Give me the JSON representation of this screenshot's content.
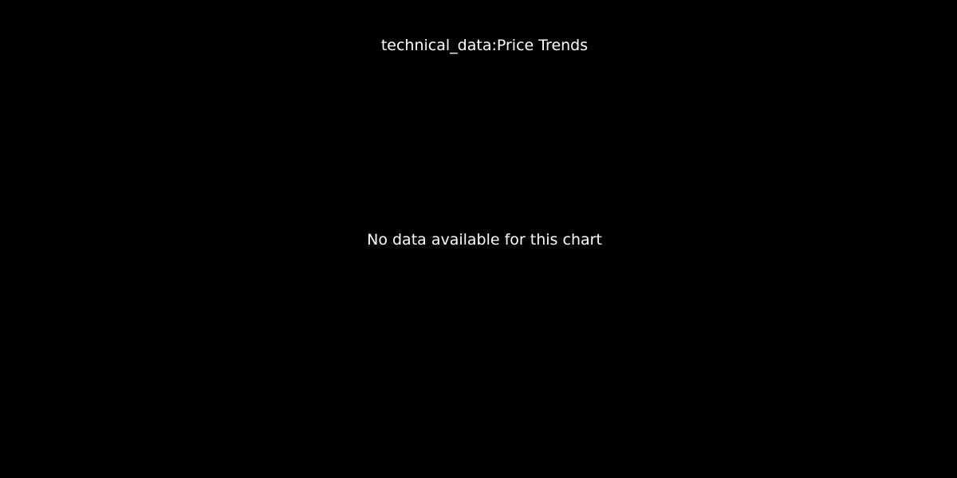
{
  "colors": {
    "background": "#000000",
    "text": "#ffffff"
  },
  "chart_data": {
    "type": "line",
    "title": "technical_data:Price Trends",
    "message": "No data available for this chart",
    "series": [],
    "grid": false,
    "legend": "none"
  }
}
